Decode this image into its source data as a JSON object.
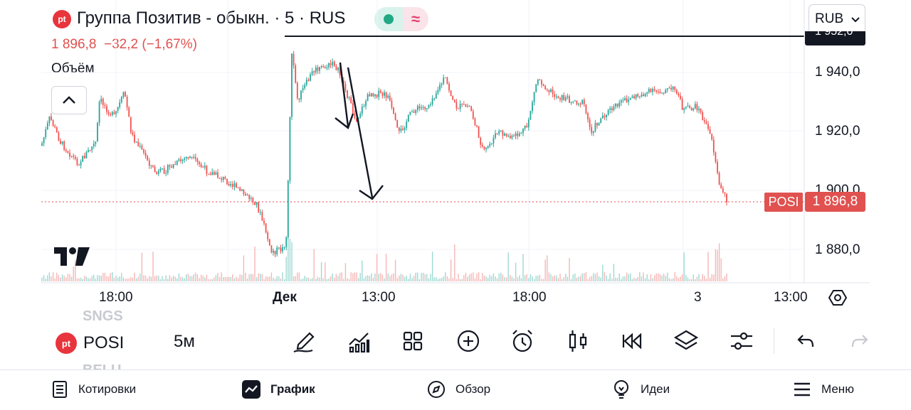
{
  "header": {
    "title": "Группа Позитив - обыкн. · 5 · RUS",
    "price": "1 896,8",
    "change": "−32,2 (−1,67%)",
    "volume_label": "Объём",
    "currency": "RUB",
    "logo_text": "pt"
  },
  "price_axis": {
    "labels": [
      "1 940,0",
      "1 920,0",
      "1 900,0",
      "1 880,0"
    ],
    "top_label": "1 952,0",
    "current_price": "1 896,8",
    "current_symbol": "POSI"
  },
  "time_axis": {
    "labels": [
      "18:00",
      "Дек",
      "13:00",
      "18:00",
      "3",
      "13:00"
    ]
  },
  "watermark": "TV",
  "toolbar": {
    "ghost_prev": "SNGS",
    "symbol": "POSI",
    "ghost_next": "BELU",
    "interval": "5м",
    "tools": [
      "pencil-icon",
      "compare-icon",
      "layouts-icon",
      "add-icon",
      "alert-icon",
      "candles-icon",
      "replay-icon",
      "layers-icon",
      "settings-icon",
      "undo-icon",
      "redo-icon"
    ]
  },
  "bottom_nav": {
    "items": [
      "Котировки",
      "График",
      "Обзор",
      "Идеи",
      "Меню"
    ]
  },
  "colors": {
    "up": "#26a69a",
    "down": "#ef5350",
    "accent_red": "#e0514f"
  }
}
